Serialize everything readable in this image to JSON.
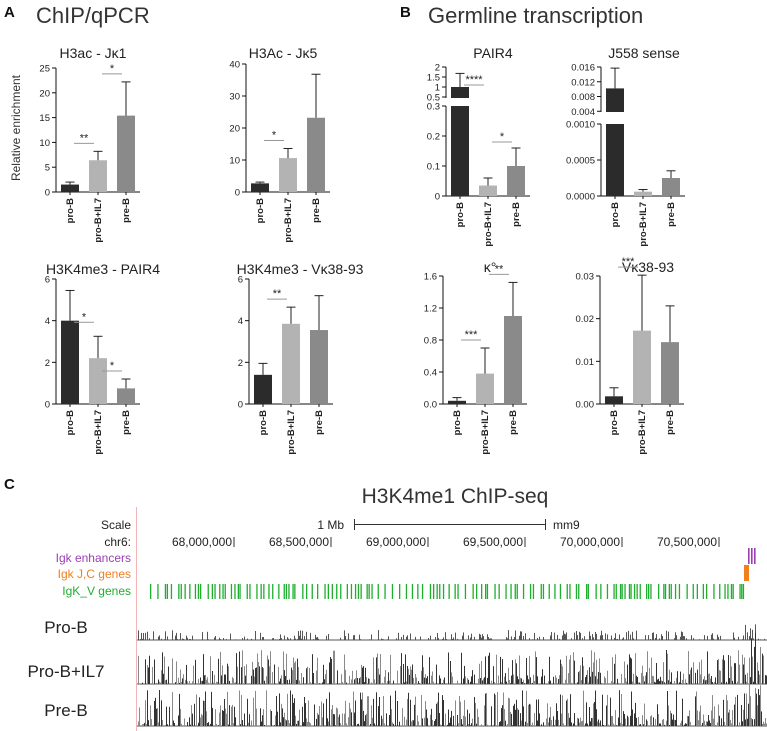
{
  "panel_a": {
    "letter": "A",
    "title": "ChIP/qPCR"
  },
  "panel_b": {
    "letter": "B",
    "title": "Germline transcription"
  },
  "panel_c": {
    "letter": "C",
    "title": "H3K4me1 ChIP-seq",
    "scale_label": "Scale",
    "scale_bar_label": "1 Mb",
    "assembly": "mm9",
    "chrom": "chr6:",
    "coords": [
      "68,000,000",
      "68,500,000",
      "69,000,000",
      "69,500,000",
      "70,000,000",
      "70,500,000"
    ],
    "track_labels": [
      "Igk enhancers",
      "Igk J,C genes",
      "IgK_V genes"
    ],
    "track_colors": [
      "#9b3fb5",
      "#f07f1e",
      "#1fae2e"
    ],
    "samples": [
      "Pro-B",
      "Pro-B+IL7",
      "Pre-B"
    ]
  },
  "chart_data": [
    {
      "type": "bar",
      "panel": "A",
      "title": "H3ac - Jκ1",
      "categories": [
        "pro-B",
        "pro-B+IL7",
        "pre-B"
      ],
      "values": [
        1.5,
        6.4,
        15.4
      ],
      "errors": [
        0.5,
        1.8,
        6.8
      ],
      "ylim": [
        0,
        25
      ],
      "yticks": [
        0,
        5,
        10,
        15,
        20,
        25
      ],
      "ylabel": "Relative enrichment",
      "significance": [
        {
          "pair": [
            0,
            1
          ],
          "label": "**"
        },
        {
          "pair": [
            1,
            2
          ],
          "label": "*"
        }
      ]
    },
    {
      "type": "bar",
      "panel": "A",
      "title": "H3Ac - Jκ5",
      "categories": [
        "pro-B",
        "pro-B+IL7",
        "pre-B"
      ],
      "values": [
        2.7,
        10.6,
        23.2
      ],
      "errors": [
        0.4,
        3.0,
        13.6
      ],
      "ylim": [
        0,
        40
      ],
      "yticks": [
        0,
        10,
        20,
        30,
        40
      ],
      "significance": [
        {
          "pair": [
            0,
            1
          ],
          "label": "*"
        }
      ]
    },
    {
      "type": "bar",
      "panel": "A",
      "title": "H3K4me3 - PAIR4",
      "categories": [
        "pro-B",
        "pro-B+IL7",
        "pre-B"
      ],
      "values": [
        4.0,
        2.2,
        0.75
      ],
      "errors": [
        1.45,
        1.05,
        0.45
      ],
      "ylim": [
        0,
        6
      ],
      "yticks": [
        0,
        2,
        4,
        6
      ],
      "significance": [
        {
          "pair": [
            0,
            1
          ],
          "label": "*"
        },
        {
          "pair": [
            1,
            2
          ],
          "label": "*"
        }
      ]
    },
    {
      "type": "bar",
      "panel": "A",
      "title": "H3K4me3 - Vκ38-93",
      "categories": [
        "pro-B",
        "pro-B+IL7",
        "pre-B"
      ],
      "values": [
        1.4,
        3.85,
        3.55
      ],
      "errors": [
        0.55,
        0.8,
        1.65
      ],
      "ylim": [
        0,
        6
      ],
      "yticks": [
        0,
        2,
        4,
        6
      ],
      "significance": [
        {
          "pair": [
            0,
            1
          ],
          "label": "**"
        }
      ]
    },
    {
      "type": "bar",
      "panel": "B",
      "title": "PAIR4",
      "categories": [
        "pro-B",
        "pro-B+IL7",
        "pre-B"
      ],
      "values": [
        1.0,
        0.035,
        0.1
      ],
      "errors": [
        0.68,
        0.025,
        0.06
      ],
      "yticks_lower": [
        0.0,
        0.1,
        0.2,
        0.3
      ],
      "yticks_upper": [
        0.5,
        1.0,
        1.5,
        2.0
      ],
      "significance": [
        {
          "pair": [
            0,
            1
          ],
          "label": "****"
        },
        {
          "pair": [
            1,
            2
          ],
          "label": "*"
        }
      ]
    },
    {
      "type": "bar",
      "panel": "B",
      "title": "J558 sense",
      "categories": [
        "pro-B",
        "pro-B+IL7",
        "pre-B"
      ],
      "values": [
        0.0102,
        6e-05,
        0.00025
      ],
      "errors": [
        0.0055,
        3e-05,
        0.0001
      ],
      "yticks_lower": [
        "0.0000",
        "0.0005",
        "0.0010"
      ],
      "yticks_upper": [
        "0.004",
        "0.008",
        "0.012",
        "0.016"
      ],
      "significance": []
    },
    {
      "type": "bar",
      "panel": "B",
      "title": "κ°",
      "categories": [
        "pro-B",
        "pro-B+IL7",
        "pre-B"
      ],
      "values": [
        0.04,
        0.38,
        1.1
      ],
      "errors": [
        0.04,
        0.32,
        0.42
      ],
      "ylim": [
        0,
        1.6
      ],
      "yticks": [
        "0.0",
        "0.4",
        "0.8",
        "1.2",
        "1.6"
      ],
      "significance": [
        {
          "pair": [
            0,
            1
          ],
          "label": "***"
        },
        {
          "pair": [
            1,
            2
          ],
          "label": "**"
        }
      ]
    },
    {
      "type": "bar",
      "panel": "B",
      "title": "Vκ38-93",
      "categories": [
        "pro-B",
        "pro-B+IL7",
        "pre-B"
      ],
      "values": [
        0.0018,
        0.0172,
        0.0145
      ],
      "errors": [
        0.002,
        0.013,
        0.0085
      ],
      "ylim": [
        0,
        0.03
      ],
      "yticks": [
        "0.00",
        "0.01",
        "0.02",
        "0.03"
      ],
      "significance": [
        {
          "pair": [
            0,
            1
          ],
          "label": "***"
        }
      ]
    }
  ]
}
